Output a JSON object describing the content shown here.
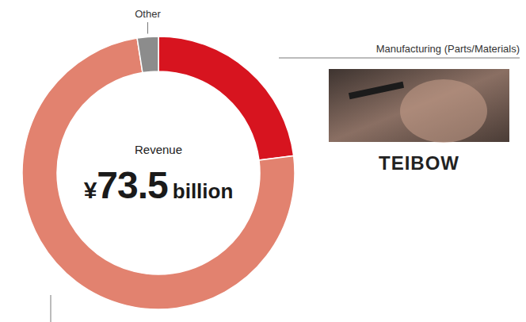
{
  "chart_data": {
    "type": "donut",
    "categories": [
      "Manufacturing (Parts/Materials)",
      null,
      "Other"
    ],
    "values": [
      23,
      74.5,
      2.5
    ],
    "colors": [
      "#d7141f",
      "#e2826f",
      "#8c8c8c"
    ],
    "center_label": "Revenue",
    "total": {
      "prefix": "¥",
      "value": 73.5,
      "unit": "billion"
    },
    "image_caption": "TEIBOW"
  }
}
